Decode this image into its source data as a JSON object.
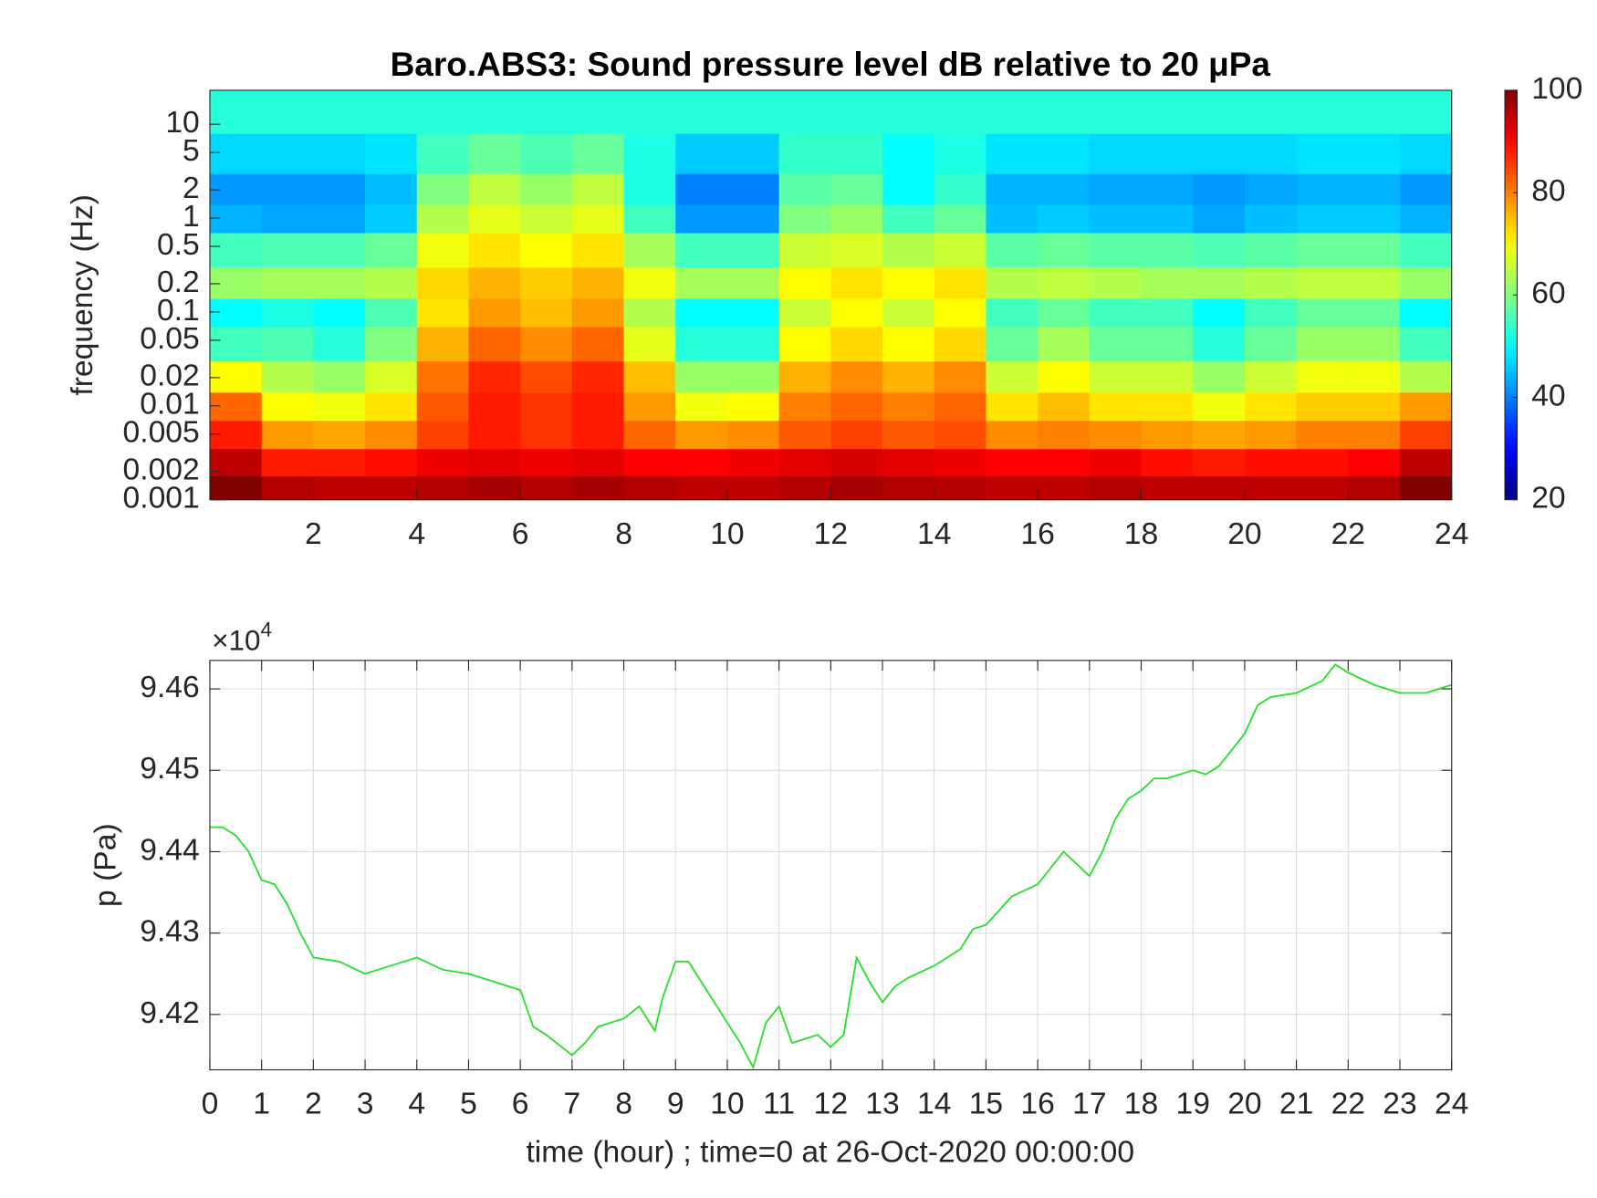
{
  "chart_data": [
    {
      "type": "heatmap",
      "title": "Baro.ABS3: Sound pressure level dB relative to 20 μPa",
      "y_label": "frequency (Hz)",
      "xlim": [
        0,
        24
      ],
      "xticks": [
        2,
        4,
        6,
        8,
        10,
        12,
        14,
        16,
        18,
        20,
        22,
        24
      ],
      "ylim": [
        0.001,
        23
      ],
      "log_y": true,
      "yticks": [
        0.001,
        0.002,
        0.005,
        0.01,
        0.02,
        0.05,
        0.1,
        0.2,
        0.5,
        1,
        2,
        5,
        10
      ],
      "time_bins": [
        0,
        1,
        2,
        3,
        4,
        5,
        6,
        7,
        8,
        9,
        10,
        11,
        12,
        13,
        14,
        15,
        16,
        17,
        18,
        19,
        20,
        21,
        22,
        23,
        24
      ],
      "frequency_bins": [
        0.001,
        0.0018,
        0.0035,
        0.007,
        0.014,
        0.03,
        0.07,
        0.14,
        0.3,
        0.7,
        1.4,
        3,
        8,
        23
      ],
      "colormap": "jet",
      "clim": [
        20,
        100
      ],
      "cticks": [
        20,
        40,
        60,
        80,
        100
      ],
      "z": [
        [
          100,
          96,
          95,
          95,
          96,
          97,
          96,
          97,
          96,
          95,
          95,
          96,
          97,
          96,
          96,
          95,
          95,
          96,
          95,
          95,
          95,
          95,
          96,
          100
        ],
        [
          95,
          88,
          88,
          89,
          91,
          92,
          91,
          92,
          90,
          90,
          91,
          92,
          93,
          92,
          91,
          90,
          90,
          91,
          89,
          88,
          89,
          89,
          90,
          95
        ],
        [
          88,
          78,
          77,
          79,
          85,
          88,
          86,
          88,
          82,
          78,
          79,
          83,
          85,
          83,
          84,
          79,
          80,
          79,
          78,
          77,
          78,
          80,
          80,
          85
        ],
        [
          82,
          70,
          69,
          72,
          83,
          88,
          86,
          88,
          78,
          69,
          70,
          80,
          82,
          80,
          82,
          72,
          75,
          72,
          72,
          69,
          72,
          74,
          74,
          78
        ],
        [
          70,
          64,
          62,
          67,
          81,
          87,
          84,
          87,
          75,
          62,
          62,
          76,
          79,
          76,
          79,
          66,
          70,
          66,
          66,
          62,
          66,
          69,
          69,
          64
        ],
        [
          55,
          56,
          53,
          60,
          76,
          82,
          79,
          82,
          68,
          53,
          53,
          70,
          73,
          70,
          73,
          58,
          63,
          58,
          58,
          53,
          58,
          62,
          62,
          55
        ],
        [
          50,
          52,
          50,
          56,
          72,
          78,
          75,
          78,
          64,
          50,
          50,
          66,
          70,
          66,
          70,
          55,
          58,
          55,
          55,
          50,
          55,
          58,
          58,
          50
        ],
        [
          62,
          63,
          63,
          64,
          73,
          76,
          74,
          76,
          69,
          63,
          63,
          70,
          72,
          70,
          72,
          64,
          65,
          64,
          63,
          63,
          64,
          65,
          65,
          62
        ],
        [
          55,
          56,
          56,
          58,
          69,
          72,
          70,
          72,
          63,
          55,
          55,
          66,
          67,
          64,
          66,
          57,
          58,
          57,
          57,
          56,
          57,
          58,
          58,
          55
        ],
        [
          44,
          43,
          43,
          46,
          64,
          68,
          66,
          68,
          55,
          42,
          42,
          60,
          62,
          55,
          58,
          45,
          46,
          45,
          45,
          43,
          45,
          46,
          46,
          44
        ],
        [
          42,
          42,
          42,
          45,
          60,
          65,
          62,
          65,
          52,
          40,
          40,
          57,
          58,
          50,
          54,
          44,
          44,
          43,
          43,
          42,
          43,
          44,
          44,
          42
        ],
        [
          47,
          47,
          47,
          48,
          55,
          58,
          56,
          58,
          52,
          46,
          46,
          54,
          54,
          50,
          52,
          48,
          48,
          47,
          47,
          47,
          47,
          48,
          48,
          47
        ],
        [
          53,
          53,
          53,
          53,
          53,
          53,
          53,
          53,
          53,
          53,
          53,
          53,
          53,
          53,
          53,
          53,
          53,
          53,
          53,
          53,
          53,
          53,
          53,
          53
        ]
      ]
    },
    {
      "type": "line",
      "x_label": "time (hour) ; time=0 at 26-Oct-2020 00:00:00",
      "y_label": "p (Pa)",
      "y_multiplier": "×10",
      "y_exponent": "4",
      "xlim": [
        0,
        24
      ],
      "xticks": [
        0,
        1,
        2,
        3,
        4,
        5,
        6,
        7,
        8,
        9,
        10,
        11,
        12,
        13,
        14,
        15,
        16,
        17,
        18,
        19,
        20,
        21,
        22,
        23,
        24
      ],
      "ylim": [
        94132,
        94635
      ],
      "yticks": [
        {
          "value": 94200,
          "label": "9.42"
        },
        {
          "value": 94300,
          "label": "9.43"
        },
        {
          "value": 94400,
          "label": "9.44"
        },
        {
          "value": 94500,
          "label": "9.45"
        },
        {
          "value": 94600,
          "label": "9.46"
        }
      ],
      "grid": true,
      "color": "#22e022",
      "x": [
        0,
        0.25,
        0.5,
        0.75,
        1,
        1.25,
        1.5,
        1.75,
        2,
        2.5,
        3,
        3.5,
        4,
        4.5,
        5,
        5.5,
        6,
        6.25,
        6.5,
        7,
        7.25,
        7.5,
        8,
        8.3,
        8.6,
        8.75,
        9,
        9.25,
        9.5,
        10,
        10.25,
        10.5,
        10.75,
        11,
        11.25,
        11.75,
        12,
        12.25,
        12.5,
        12.75,
        13,
        13.25,
        13.5,
        14,
        14.5,
        14.75,
        15,
        15.5,
        16,
        16.5,
        17,
        17.25,
        17.5,
        17.75,
        18,
        18.25,
        18.5,
        19,
        19.25,
        19.5,
        20,
        20.25,
        20.5,
        21,
        21.5,
        21.75,
        22,
        22.5,
        23,
        23.5,
        24
      ],
      "values": [
        94430,
        94430,
        94420,
        94400,
        94365,
        94360,
        94335,
        94300,
        94270,
        94265,
        94250,
        94260,
        94270,
        94255,
        94250,
        94240,
        94230,
        94185,
        94175,
        94150,
        94165,
        94185,
        94195,
        94210,
        94180,
        94220,
        94265,
        94265,
        94240,
        94190,
        94165,
        94135,
        94190,
        94210,
        94165,
        94175,
        94160,
        94175,
        94270,
        94240,
        94215,
        94235,
        94245,
        94260,
        94280,
        94305,
        94310,
        94345,
        94360,
        94400,
        94370,
        94400,
        94440,
        94465,
        94475,
        94490,
        94490,
        94500,
        94495,
        94505,
        94545,
        94580,
        94590,
        94595,
        94610,
        94630,
        94620,
        94605,
        94595,
        94595,
        94605
      ]
    }
  ]
}
